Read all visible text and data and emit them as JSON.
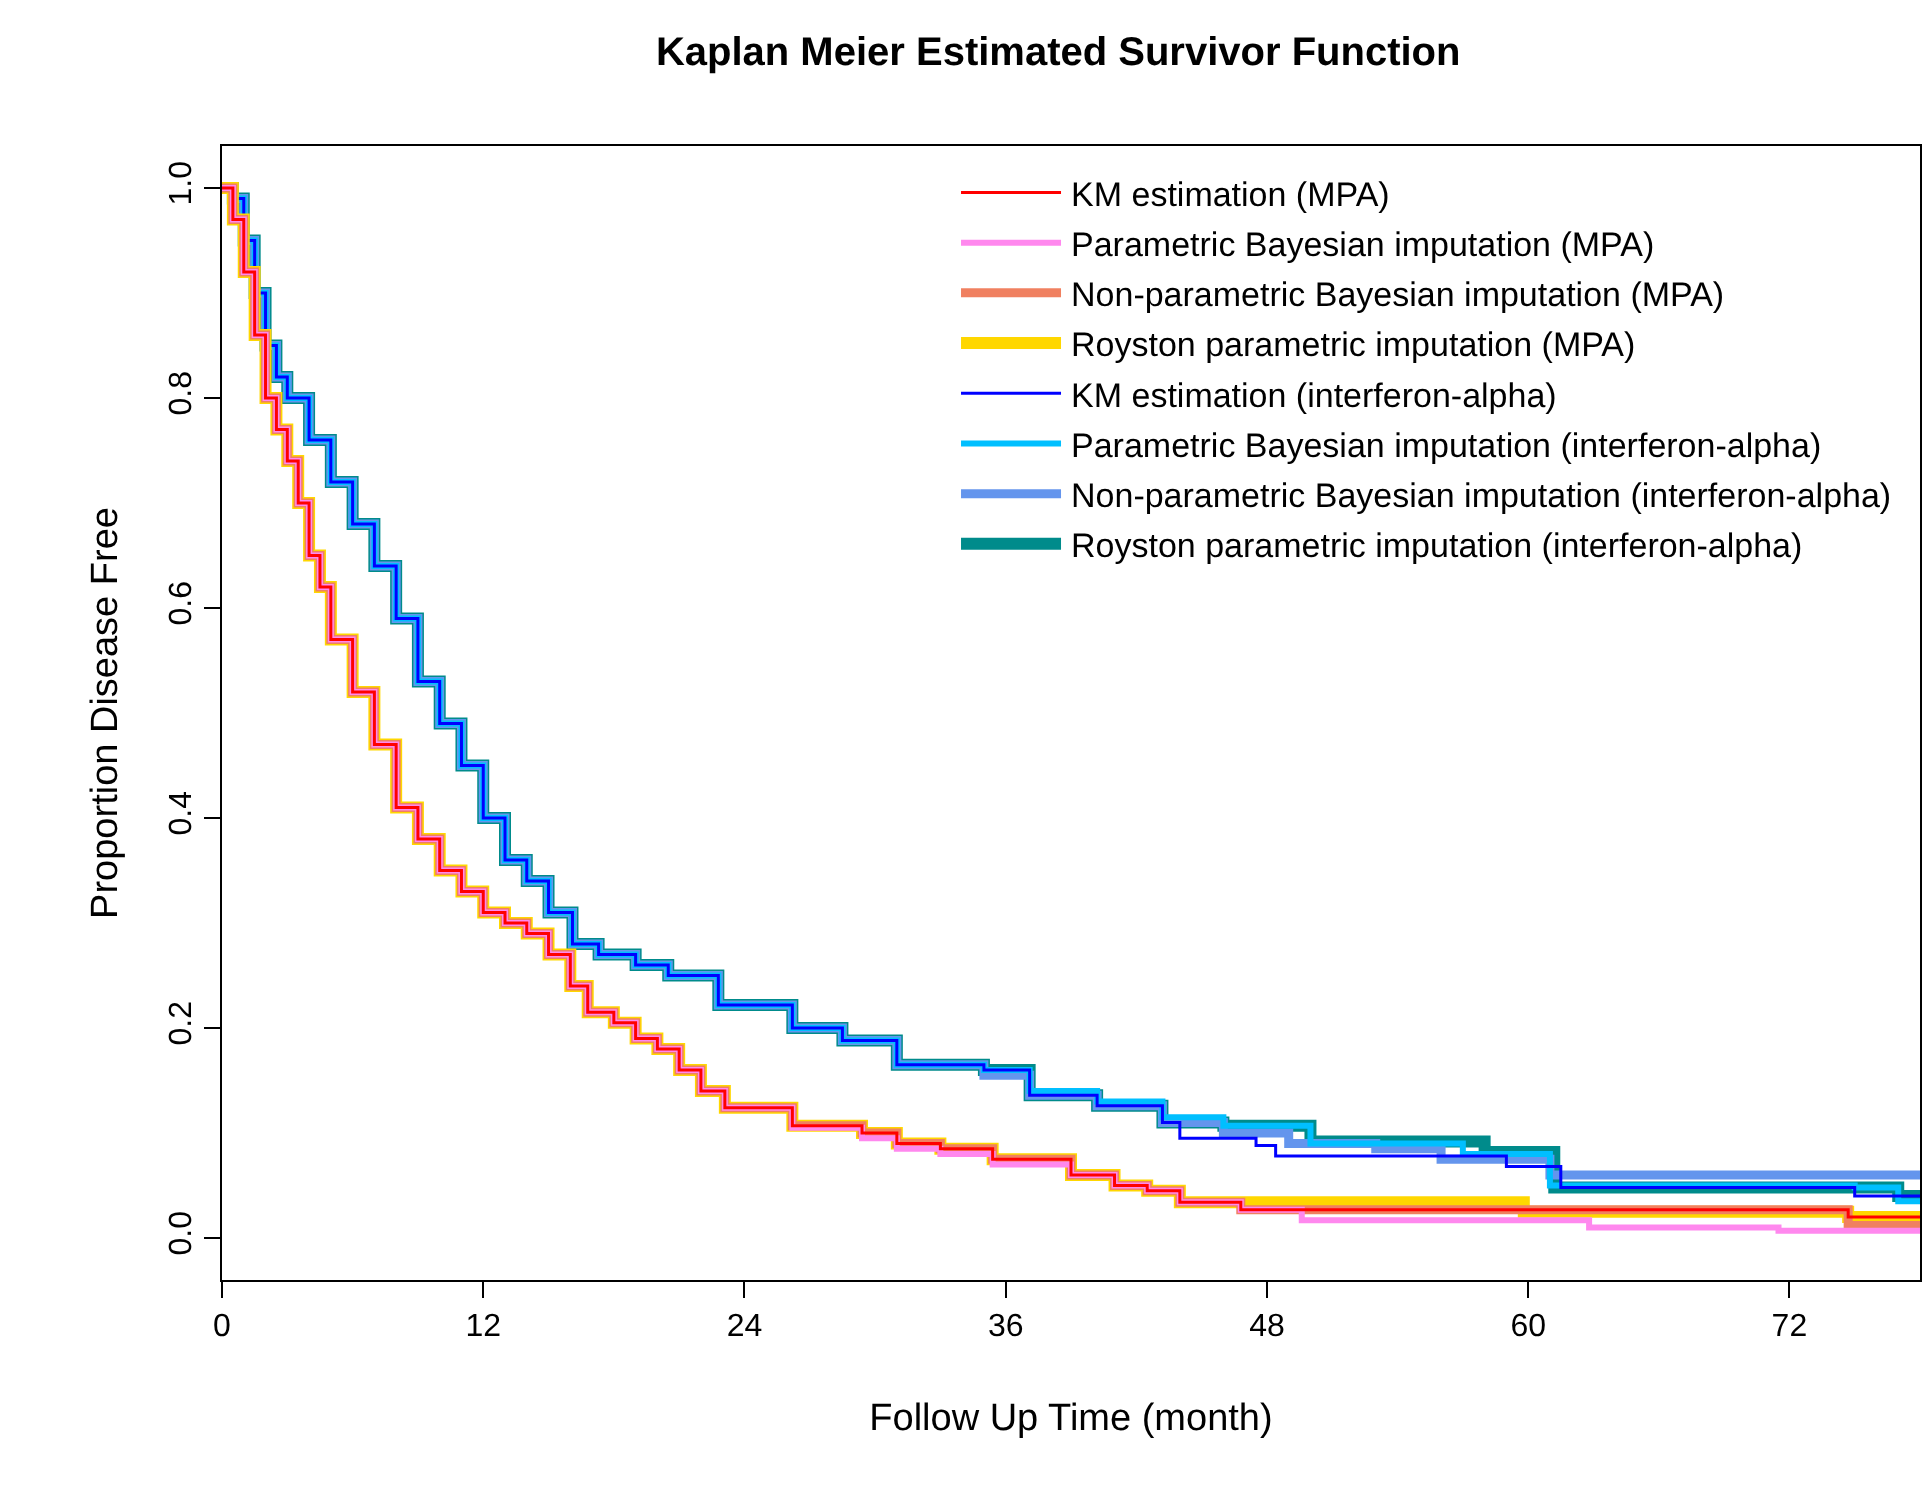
{
  "chart_data": {
    "type": "step",
    "title": "Kaplan Meier Estimated Survivor Function",
    "xlabel": "Follow Up Time (month)",
    "ylabel": "Proportion Disease Free",
    "xlim": [
      0,
      78
    ],
    "xticks": [
      0,
      12,
      24,
      36,
      48,
      60,
      72
    ],
    "ylim": [
      -0.04,
      1.04
    ],
    "yticks": [
      {
        "value": 0,
        "label": "0.0"
      },
      {
        "value": 0.2,
        "label": "0.2"
      },
      {
        "value": 0.4,
        "label": "0.4"
      },
      {
        "value": 0.6,
        "label": "0.6"
      },
      {
        "value": 0.8,
        "label": "0.8"
      },
      {
        "value": 1,
        "label": "1.0"
      }
    ],
    "grid": false,
    "legend": "top right",
    "marker": "none",
    "line_style": "solid",
    "series": [
      {
        "name": "KM estimation (MPA)",
        "color": "#ff0000",
        "x": [
          0,
          0.5,
          1,
          1.5,
          2,
          2.5,
          3,
          3.5,
          4,
          4.5,
          5,
          6,
          7,
          8,
          9,
          10,
          11,
          12,
          13,
          14,
          15,
          16,
          16.8,
          18,
          19,
          20,
          21,
          22,
          23.1,
          26.2,
          29.4,
          31,
          33,
          35.4,
          39,
          41,
          42.5,
          44,
          46.8,
          74.7,
          78
        ],
        "values": [
          1,
          0.97,
          0.92,
          0.86,
          0.8,
          0.77,
          0.74,
          0.7,
          0.65,
          0.62,
          0.57,
          0.52,
          0.47,
          0.41,
          0.38,
          0.35,
          0.33,
          0.31,
          0.3,
          0.29,
          0.27,
          0.24,
          0.215,
          0.205,
          0.19,
          0.18,
          0.16,
          0.14,
          0.124,
          0.107,
          0.1,
          0.09,
          0.085,
          0.075,
          0.06,
          0.05,
          0.045,
          0.034,
          0.027,
          0.02,
          0.02
        ]
      },
      {
        "name": "Parametric Bayesian imputation (MPA)",
        "color": "#ff88ee",
        "x": [
          0,
          0.5,
          1,
          1.5,
          2,
          2.5,
          3,
          3.5,
          4,
          4.5,
          5,
          6,
          7,
          8,
          9,
          10,
          11,
          12,
          13,
          14,
          15,
          16,
          16.8,
          18,
          19,
          20,
          21,
          22,
          23.1,
          26.2,
          29.4,
          31,
          33,
          35.4,
          39,
          41,
          42.5,
          44,
          46.8,
          49.6,
          62.8,
          71.5,
          78
        ],
        "values": [
          1,
          0.97,
          0.92,
          0.86,
          0.8,
          0.77,
          0.74,
          0.7,
          0.65,
          0.62,
          0.57,
          0.52,
          0.47,
          0.41,
          0.38,
          0.35,
          0.33,
          0.31,
          0.3,
          0.29,
          0.27,
          0.24,
          0.215,
          0.205,
          0.19,
          0.18,
          0.16,
          0.14,
          0.124,
          0.105,
          0.095,
          0.085,
          0.08,
          0.07,
          0.06,
          0.05,
          0.045,
          0.034,
          0.027,
          0.017,
          0.01,
          0.007,
          0.007
        ]
      },
      {
        "name": "Non-parametric Bayesian imputation (MPA)",
        "color": "#f08060",
        "x": [
          0,
          0.5,
          1,
          1.5,
          2,
          2.5,
          3,
          3.5,
          4,
          4.5,
          5,
          6,
          7,
          8,
          9,
          10,
          11,
          12,
          13,
          14,
          15,
          16,
          16.8,
          18,
          19,
          20,
          21,
          22,
          23.1,
          26.2,
          29.4,
          31,
          33,
          35.4,
          39,
          41,
          42.5,
          44,
          46.8,
          74.7,
          78
        ],
        "values": [
          1,
          0.97,
          0.92,
          0.86,
          0.8,
          0.77,
          0.74,
          0.7,
          0.65,
          0.62,
          0.57,
          0.52,
          0.47,
          0.41,
          0.38,
          0.35,
          0.33,
          0.31,
          0.3,
          0.29,
          0.27,
          0.24,
          0.215,
          0.205,
          0.19,
          0.18,
          0.16,
          0.14,
          0.124,
          0.107,
          0.1,
          0.09,
          0.085,
          0.075,
          0.06,
          0.05,
          0.045,
          0.034,
          0.027,
          0.012,
          0.012
        ]
      },
      {
        "name": "Royston parametric imputation (MPA)",
        "color": "#ffd700",
        "x": [
          0,
          0.5,
          1,
          1.5,
          2,
          2.5,
          3,
          3.5,
          4,
          4.5,
          5,
          6,
          7,
          8,
          9,
          10,
          11,
          12,
          13,
          14,
          15,
          16,
          16.8,
          18,
          19,
          20,
          21,
          22,
          23.1,
          26.2,
          29.4,
          31,
          33,
          35.4,
          39,
          41,
          42.5,
          44,
          59.8,
          74.7,
          78
        ],
        "values": [
          1,
          0.97,
          0.92,
          0.86,
          0.8,
          0.77,
          0.74,
          0.7,
          0.65,
          0.62,
          0.57,
          0.52,
          0.47,
          0.41,
          0.38,
          0.35,
          0.33,
          0.31,
          0.3,
          0.29,
          0.27,
          0.24,
          0.215,
          0.205,
          0.19,
          0.18,
          0.16,
          0.14,
          0.124,
          0.107,
          0.1,
          0.09,
          0.085,
          0.075,
          0.06,
          0.05,
          0.045,
          0.034,
          0.025,
          0.02,
          0.02
        ]
      },
      {
        "name": "KM estimation (interferon-alpha)",
        "color": "#0000ff",
        "x": [
          0,
          0.5,
          1,
          1.5,
          2,
          2.5,
          3,
          4,
          5,
          6,
          7,
          8,
          9,
          10,
          11,
          12,
          13,
          14,
          15,
          16.1,
          17.3,
          19,
          20.5,
          22.8,
          26.2,
          28.5,
          31,
          35,
          37.1,
          40.2,
          43.2,
          44,
          47.5,
          48.4,
          59,
          61.5,
          75,
          78
        ],
        "values": [
          1,
          0.99,
          0.95,
          0.9,
          0.85,
          0.82,
          0.8,
          0.76,
          0.72,
          0.68,
          0.64,
          0.59,
          0.53,
          0.49,
          0.45,
          0.4,
          0.36,
          0.34,
          0.31,
          0.28,
          0.27,
          0.26,
          0.25,
          0.222,
          0.2,
          0.188,
          0.165,
          0.16,
          0.136,
          0.126,
          0.11,
          0.095,
          0.088,
          0.078,
          0.068,
          0.048,
          0.04,
          0.04
        ]
      },
      {
        "name": "Parametric Bayesian imputation (interferon-alpha)",
        "color": "#00bfff",
        "x": [
          0,
          0.5,
          1,
          1.5,
          2,
          2.5,
          3,
          4,
          5,
          6,
          7,
          8,
          9,
          10,
          11,
          12,
          13,
          14,
          15,
          16.1,
          17.3,
          19,
          20.5,
          22.8,
          26.2,
          28.5,
          31,
          35,
          37.1,
          40.2,
          43.2,
          46,
          50,
          57,
          61,
          75,
          77,
          78
        ],
        "values": [
          1,
          0.99,
          0.95,
          0.9,
          0.85,
          0.82,
          0.8,
          0.76,
          0.72,
          0.68,
          0.64,
          0.59,
          0.53,
          0.49,
          0.45,
          0.4,
          0.36,
          0.34,
          0.31,
          0.28,
          0.27,
          0.26,
          0.25,
          0.222,
          0.2,
          0.188,
          0.165,
          0.16,
          0.14,
          0.13,
          0.115,
          0.107,
          0.09,
          0.08,
          0.05,
          0.048,
          0.035,
          0.035
        ]
      },
      {
        "name": "Non-parametric Bayesian imputation (interferon-alpha)",
        "color": "#6495ed",
        "x": [
          0,
          0.5,
          1,
          1.5,
          2,
          2.5,
          3,
          4,
          5,
          6,
          7,
          8,
          9,
          10,
          11,
          12,
          13,
          14,
          15,
          16.1,
          17.3,
          19,
          20.5,
          22.8,
          26.2,
          28.5,
          31,
          35,
          37.1,
          40.2,
          43.2,
          46,
          49,
          53,
          56,
          61,
          78
        ],
        "values": [
          1,
          0.99,
          0.95,
          0.9,
          0.85,
          0.82,
          0.8,
          0.76,
          0.72,
          0.68,
          0.64,
          0.59,
          0.53,
          0.49,
          0.45,
          0.4,
          0.36,
          0.34,
          0.31,
          0.28,
          0.27,
          0.26,
          0.25,
          0.222,
          0.2,
          0.188,
          0.165,
          0.155,
          0.136,
          0.126,
          0.11,
          0.1,
          0.09,
          0.085,
          0.075,
          0.06,
          0.06
        ]
      },
      {
        "name": "Royston parametric imputation (interferon-alpha)",
        "color": "#008b8b",
        "x": [
          0,
          0.5,
          1,
          1.5,
          2,
          2.5,
          3,
          4,
          5,
          6,
          7,
          8,
          9,
          10,
          11,
          12,
          13,
          14,
          15,
          16.1,
          17.3,
          19,
          20.5,
          22.8,
          26.2,
          28.5,
          31,
          35,
          37.1,
          40.2,
          43.2,
          46,
          50,
          58,
          61.2,
          77,
          78
        ],
        "values": [
          1,
          0.99,
          0.95,
          0.9,
          0.85,
          0.82,
          0.8,
          0.76,
          0.72,
          0.68,
          0.64,
          0.59,
          0.53,
          0.49,
          0.45,
          0.4,
          0.36,
          0.34,
          0.31,
          0.28,
          0.27,
          0.26,
          0.25,
          0.222,
          0.2,
          0.188,
          0.165,
          0.16,
          0.136,
          0.126,
          0.11,
          0.107,
          0.092,
          0.082,
          0.048,
          0.04,
          0.04
        ]
      }
    ]
  }
}
